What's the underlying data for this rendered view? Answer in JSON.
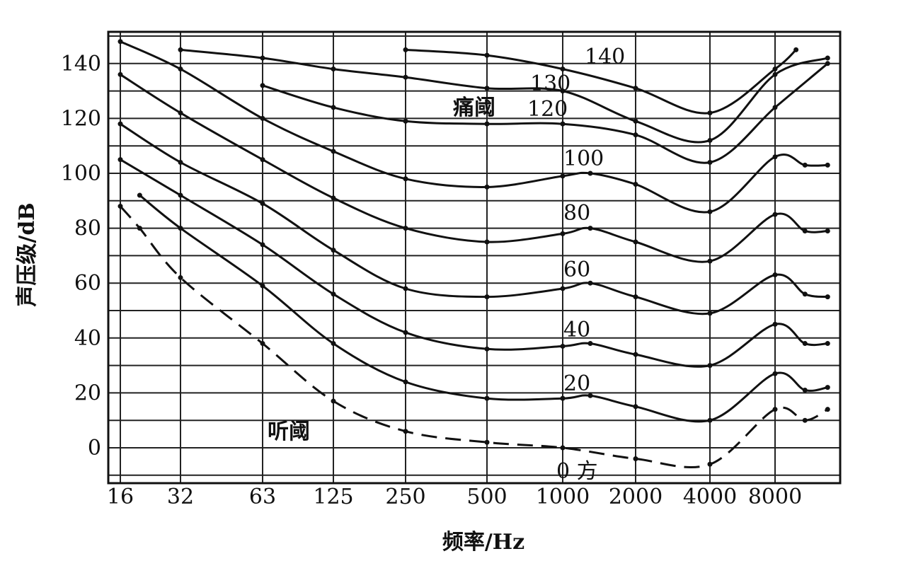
{
  "chart_data": {
    "type": "line",
    "title": "",
    "xlabel": "频率/Hz",
    "ylabel": "声压级/dB",
    "xscale": "log",
    "x_ticks": [
      "16",
      "32",
      "63",
      "125",
      "250",
      "500",
      "1000",
      "2000",
      "4000",
      "8000"
    ],
    "y_ticks": [
      "0",
      "20",
      "40",
      "60",
      "80",
      "100",
      "120",
      "140"
    ],
    "ylim": [
      -10,
      150
    ],
    "grid": true,
    "series": [
      {
        "name": "0 方",
        "dashed": true,
        "x": [
          16,
          20,
          32,
          63,
          125,
          250,
          500,
          1000,
          2000,
          4000,
          8000,
          11000,
          14000
        ],
        "y": [
          88,
          80,
          62,
          38,
          17,
          6,
          2,
          0,
          -4,
          -6,
          14,
          10,
          14
        ]
      },
      {
        "name": "20",
        "x": [
          20,
          32,
          63,
          125,
          250,
          500,
          1000,
          1300,
          2000,
          4000,
          8000,
          11000,
          14000
        ],
        "y": [
          92,
          80,
          59,
          38,
          24,
          18,
          18,
          19,
          15,
          10,
          27,
          21,
          22
        ]
      },
      {
        "name": "40",
        "x": [
          16,
          32,
          63,
          125,
          250,
          500,
          1000,
          1300,
          2000,
          4000,
          8000,
          11000,
          14000
        ],
        "y": [
          105,
          92,
          74,
          56,
          42,
          36,
          37,
          38,
          34,
          30,
          45,
          38,
          38
        ]
      },
      {
        "name": "60",
        "x": [
          16,
          32,
          63,
          125,
          250,
          500,
          1000,
          1300,
          2000,
          4000,
          8000,
          11000,
          14000
        ],
        "y": [
          118,
          104,
          89,
          72,
          58,
          55,
          58,
          60,
          55,
          49,
          63,
          56,
          55
        ]
      },
      {
        "name": "80",
        "x": [
          16,
          32,
          63,
          125,
          250,
          500,
          1000,
          1300,
          2000,
          4000,
          8000,
          11000,
          14000
        ],
        "y": [
          136,
          122,
          105,
          91,
          80,
          75,
          78,
          80,
          75,
          68,
          85,
          79,
          79
        ]
      },
      {
        "name": "100",
        "x": [
          16,
          32,
          63,
          125,
          250,
          500,
          1000,
          1300,
          2000,
          4000,
          8000,
          11000,
          14000
        ],
        "y": [
          148,
          138,
          120,
          108,
          98,
          95,
          99,
          100,
          96,
          86,
          106,
          103,
          103
        ]
      },
      {
        "name": "120",
        "x": [
          63,
          125,
          250,
          500,
          1000,
          2000,
          4000,
          8000,
          14000
        ],
        "y": [
          132,
          124,
          119,
          118,
          118,
          114,
          104,
          124,
          140
        ]
      },
      {
        "name": "130",
        "x": [
          32,
          63,
          125,
          250,
          500,
          1000,
          2000,
          4000,
          8000,
          14000
        ],
        "y": [
          145,
          142,
          138,
          135,
          131,
          130,
          119,
          112,
          136,
          142
        ]
      },
      {
        "name": "140",
        "x": [
          250,
          500,
          1000,
          2000,
          4000,
          8000,
          10000
        ],
        "y": [
          145,
          143,
          138,
          131,
          122,
          138,
          145
        ]
      }
    ],
    "annotations": [
      "痛阈",
      "听阈"
    ]
  },
  "labels": {
    "pain_threshold": "痛阈",
    "hearing_threshold": "听阈",
    "zero_phon": "0 方"
  }
}
